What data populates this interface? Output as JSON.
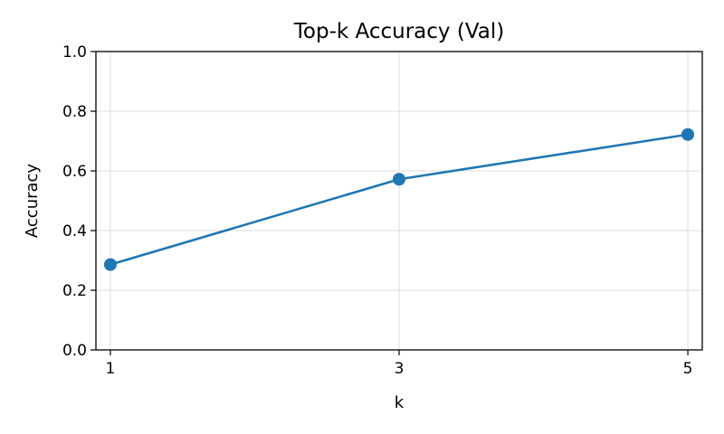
{
  "chart_data": {
    "type": "line",
    "title": "Top-k Accuracy (Val)",
    "xlabel": "k",
    "ylabel": "Accuracy",
    "x": [
      1,
      3,
      5
    ],
    "xticks": [
      "1",
      "3",
      "5"
    ],
    "yticks": [
      "0.0",
      "0.2",
      "0.4",
      "0.6",
      "0.8",
      "1.0"
    ],
    "ytick_values": [
      0.0,
      0.2,
      0.4,
      0.6,
      0.8,
      1.0
    ],
    "ylim": [
      0.0,
      1.0
    ],
    "xlim": [
      0.9,
      5.1
    ],
    "grid": true,
    "series": [
      {
        "values": [
          0.286,
          0.572,
          0.722
        ],
        "color": "#1f77b4"
      }
    ]
  }
}
